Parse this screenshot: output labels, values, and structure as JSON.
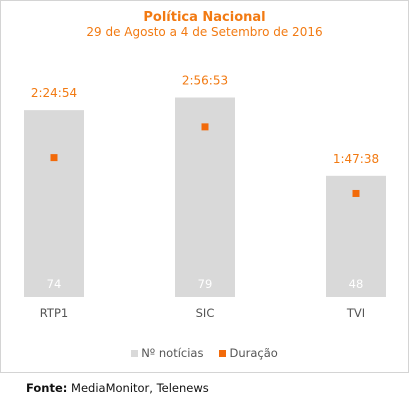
{
  "colors": {
    "bar": "#d9d9d9",
    "marker": "#f26a0a",
    "accent_text": "#f27a12",
    "bar_value_text": "#ffffff",
    "axis_text": "#555555"
  },
  "footer": {
    "label": "Fonte:",
    "text": "MediaMonitor, Telenews"
  },
  "chart_data": {
    "type": "bar",
    "title": "Política Nacional",
    "subtitle": "29 de Agosto a 4 de Setembro de 2016",
    "categories": [
      "RTP1",
      "SIC",
      "TVI"
    ],
    "series": [
      {
        "name": "Nº notícias",
        "type": "bar",
        "values": [
          74,
          79,
          48
        ],
        "labels": [
          "74",
          "79",
          "48"
        ]
      },
      {
        "name": "Duração",
        "type": "scatter",
        "values_seconds": [
          8694,
          10613,
          6458
        ],
        "labels": [
          "2:24:54",
          "2:56:53",
          "1:47:38"
        ]
      }
    ],
    "ylim_bars": [
      0,
      80
    ],
    "ylim_duration_seconds": [
      0,
      12600
    ],
    "grid": false,
    "legend_position": "bottom"
  }
}
